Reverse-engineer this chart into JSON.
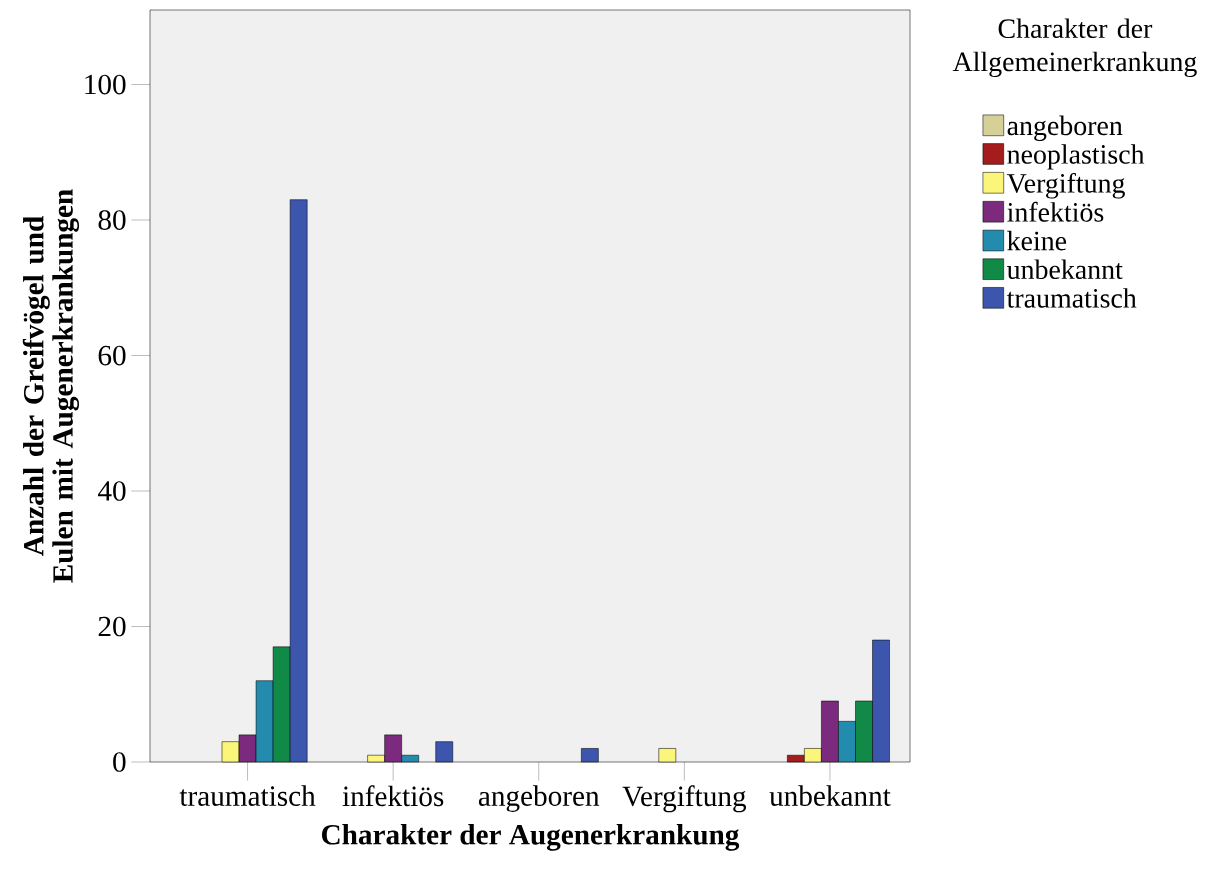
{
  "chart_data": {
    "type": "bar",
    "xlabel": "Charakter der Augenerkrankung",
    "ylabel": "Anzahl der Greifvögel und Eulen mit Augenerkrankungen",
    "legend_title": "Charakter der Allgemeinerkrankung",
    "legend": "right",
    "grid": false,
    "categories": [
      "traumatisch",
      "infektiös",
      "angeboren",
      "Vergiftung",
      "unbekannt"
    ],
    "ylim": [
      0,
      111
    ],
    "yticks": [
      0,
      20,
      40,
      60,
      80,
      100
    ],
    "series": [
      {
        "name": "angeboren",
        "color": "#d5cf98",
        "values": [
          null,
          null,
          null,
          null,
          null
        ]
      },
      {
        "name": "neoplastisch",
        "color": "#a51c1c",
        "values": [
          null,
          null,
          null,
          null,
          1
        ]
      },
      {
        "name": "Vergiftung",
        "color": "#fbf67a",
        "values": [
          3,
          1,
          null,
          2,
          2
        ]
      },
      {
        "name": "infektiös",
        "color": "#7b2a7e",
        "values": [
          4,
          4,
          null,
          null,
          9
        ]
      },
      {
        "name": "keine",
        "color": "#238cae",
        "values": [
          12,
          1,
          null,
          null,
          6
        ]
      },
      {
        "name": "unbekannt",
        "color": "#128a47",
        "values": [
          17,
          null,
          null,
          null,
          9
        ]
      },
      {
        "name": "traumatisch",
        "color": "#3c55ad",
        "values": [
          83,
          3,
          2,
          null,
          18
        ]
      }
    ]
  }
}
